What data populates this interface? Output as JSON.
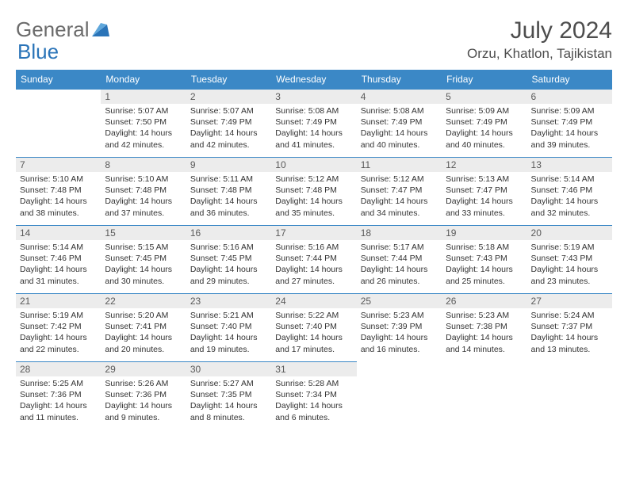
{
  "logo": {
    "part1": "General",
    "part2": "Blue"
  },
  "title": "July 2024",
  "location": "Orzu, Khatlon, Tajikistan",
  "colors": {
    "header_bg": "#3b88c6",
    "header_text": "#ffffff",
    "daynum_bg": "#ececec",
    "border": "#3b88c6",
    "logo_gray": "#6b6b6b",
    "logo_blue": "#2a74b8"
  },
  "weekdays": [
    "Sunday",
    "Monday",
    "Tuesday",
    "Wednesday",
    "Thursday",
    "Friday",
    "Saturday"
  ],
  "weeks": [
    [
      null,
      {
        "n": "1",
        "sr": "Sunrise: 5:07 AM",
        "ss": "Sunset: 7:50 PM",
        "d1": "Daylight: 14 hours",
        "d2": "and 42 minutes."
      },
      {
        "n": "2",
        "sr": "Sunrise: 5:07 AM",
        "ss": "Sunset: 7:49 PM",
        "d1": "Daylight: 14 hours",
        "d2": "and 42 minutes."
      },
      {
        "n": "3",
        "sr": "Sunrise: 5:08 AM",
        "ss": "Sunset: 7:49 PM",
        "d1": "Daylight: 14 hours",
        "d2": "and 41 minutes."
      },
      {
        "n": "4",
        "sr": "Sunrise: 5:08 AM",
        "ss": "Sunset: 7:49 PM",
        "d1": "Daylight: 14 hours",
        "d2": "and 40 minutes."
      },
      {
        "n": "5",
        "sr": "Sunrise: 5:09 AM",
        "ss": "Sunset: 7:49 PM",
        "d1": "Daylight: 14 hours",
        "d2": "and 40 minutes."
      },
      {
        "n": "6",
        "sr": "Sunrise: 5:09 AM",
        "ss": "Sunset: 7:49 PM",
        "d1": "Daylight: 14 hours",
        "d2": "and 39 minutes."
      }
    ],
    [
      {
        "n": "7",
        "sr": "Sunrise: 5:10 AM",
        "ss": "Sunset: 7:48 PM",
        "d1": "Daylight: 14 hours",
        "d2": "and 38 minutes."
      },
      {
        "n": "8",
        "sr": "Sunrise: 5:10 AM",
        "ss": "Sunset: 7:48 PM",
        "d1": "Daylight: 14 hours",
        "d2": "and 37 minutes."
      },
      {
        "n": "9",
        "sr": "Sunrise: 5:11 AM",
        "ss": "Sunset: 7:48 PM",
        "d1": "Daylight: 14 hours",
        "d2": "and 36 minutes."
      },
      {
        "n": "10",
        "sr": "Sunrise: 5:12 AM",
        "ss": "Sunset: 7:48 PM",
        "d1": "Daylight: 14 hours",
        "d2": "and 35 minutes."
      },
      {
        "n": "11",
        "sr": "Sunrise: 5:12 AM",
        "ss": "Sunset: 7:47 PM",
        "d1": "Daylight: 14 hours",
        "d2": "and 34 minutes."
      },
      {
        "n": "12",
        "sr": "Sunrise: 5:13 AM",
        "ss": "Sunset: 7:47 PM",
        "d1": "Daylight: 14 hours",
        "d2": "and 33 minutes."
      },
      {
        "n": "13",
        "sr": "Sunrise: 5:14 AM",
        "ss": "Sunset: 7:46 PM",
        "d1": "Daylight: 14 hours",
        "d2": "and 32 minutes."
      }
    ],
    [
      {
        "n": "14",
        "sr": "Sunrise: 5:14 AM",
        "ss": "Sunset: 7:46 PM",
        "d1": "Daylight: 14 hours",
        "d2": "and 31 minutes."
      },
      {
        "n": "15",
        "sr": "Sunrise: 5:15 AM",
        "ss": "Sunset: 7:45 PM",
        "d1": "Daylight: 14 hours",
        "d2": "and 30 minutes."
      },
      {
        "n": "16",
        "sr": "Sunrise: 5:16 AM",
        "ss": "Sunset: 7:45 PM",
        "d1": "Daylight: 14 hours",
        "d2": "and 29 minutes."
      },
      {
        "n": "17",
        "sr": "Sunrise: 5:16 AM",
        "ss": "Sunset: 7:44 PM",
        "d1": "Daylight: 14 hours",
        "d2": "and 27 minutes."
      },
      {
        "n": "18",
        "sr": "Sunrise: 5:17 AM",
        "ss": "Sunset: 7:44 PM",
        "d1": "Daylight: 14 hours",
        "d2": "and 26 minutes."
      },
      {
        "n": "19",
        "sr": "Sunrise: 5:18 AM",
        "ss": "Sunset: 7:43 PM",
        "d1": "Daylight: 14 hours",
        "d2": "and 25 minutes."
      },
      {
        "n": "20",
        "sr": "Sunrise: 5:19 AM",
        "ss": "Sunset: 7:43 PM",
        "d1": "Daylight: 14 hours",
        "d2": "and 23 minutes."
      }
    ],
    [
      {
        "n": "21",
        "sr": "Sunrise: 5:19 AM",
        "ss": "Sunset: 7:42 PM",
        "d1": "Daylight: 14 hours",
        "d2": "and 22 minutes."
      },
      {
        "n": "22",
        "sr": "Sunrise: 5:20 AM",
        "ss": "Sunset: 7:41 PM",
        "d1": "Daylight: 14 hours",
        "d2": "and 20 minutes."
      },
      {
        "n": "23",
        "sr": "Sunrise: 5:21 AM",
        "ss": "Sunset: 7:40 PM",
        "d1": "Daylight: 14 hours",
        "d2": "and 19 minutes."
      },
      {
        "n": "24",
        "sr": "Sunrise: 5:22 AM",
        "ss": "Sunset: 7:40 PM",
        "d1": "Daylight: 14 hours",
        "d2": "and 17 minutes."
      },
      {
        "n": "25",
        "sr": "Sunrise: 5:23 AM",
        "ss": "Sunset: 7:39 PM",
        "d1": "Daylight: 14 hours",
        "d2": "and 16 minutes."
      },
      {
        "n": "26",
        "sr": "Sunrise: 5:23 AM",
        "ss": "Sunset: 7:38 PM",
        "d1": "Daylight: 14 hours",
        "d2": "and 14 minutes."
      },
      {
        "n": "27",
        "sr": "Sunrise: 5:24 AM",
        "ss": "Sunset: 7:37 PM",
        "d1": "Daylight: 14 hours",
        "d2": "and 13 minutes."
      }
    ],
    [
      {
        "n": "28",
        "sr": "Sunrise: 5:25 AM",
        "ss": "Sunset: 7:36 PM",
        "d1": "Daylight: 14 hours",
        "d2": "and 11 minutes."
      },
      {
        "n": "29",
        "sr": "Sunrise: 5:26 AM",
        "ss": "Sunset: 7:36 PM",
        "d1": "Daylight: 14 hours",
        "d2": "and 9 minutes."
      },
      {
        "n": "30",
        "sr": "Sunrise: 5:27 AM",
        "ss": "Sunset: 7:35 PM",
        "d1": "Daylight: 14 hours",
        "d2": "and 8 minutes."
      },
      {
        "n": "31",
        "sr": "Sunrise: 5:28 AM",
        "ss": "Sunset: 7:34 PM",
        "d1": "Daylight: 14 hours",
        "d2": "and 6 minutes."
      },
      null,
      null,
      null
    ]
  ]
}
